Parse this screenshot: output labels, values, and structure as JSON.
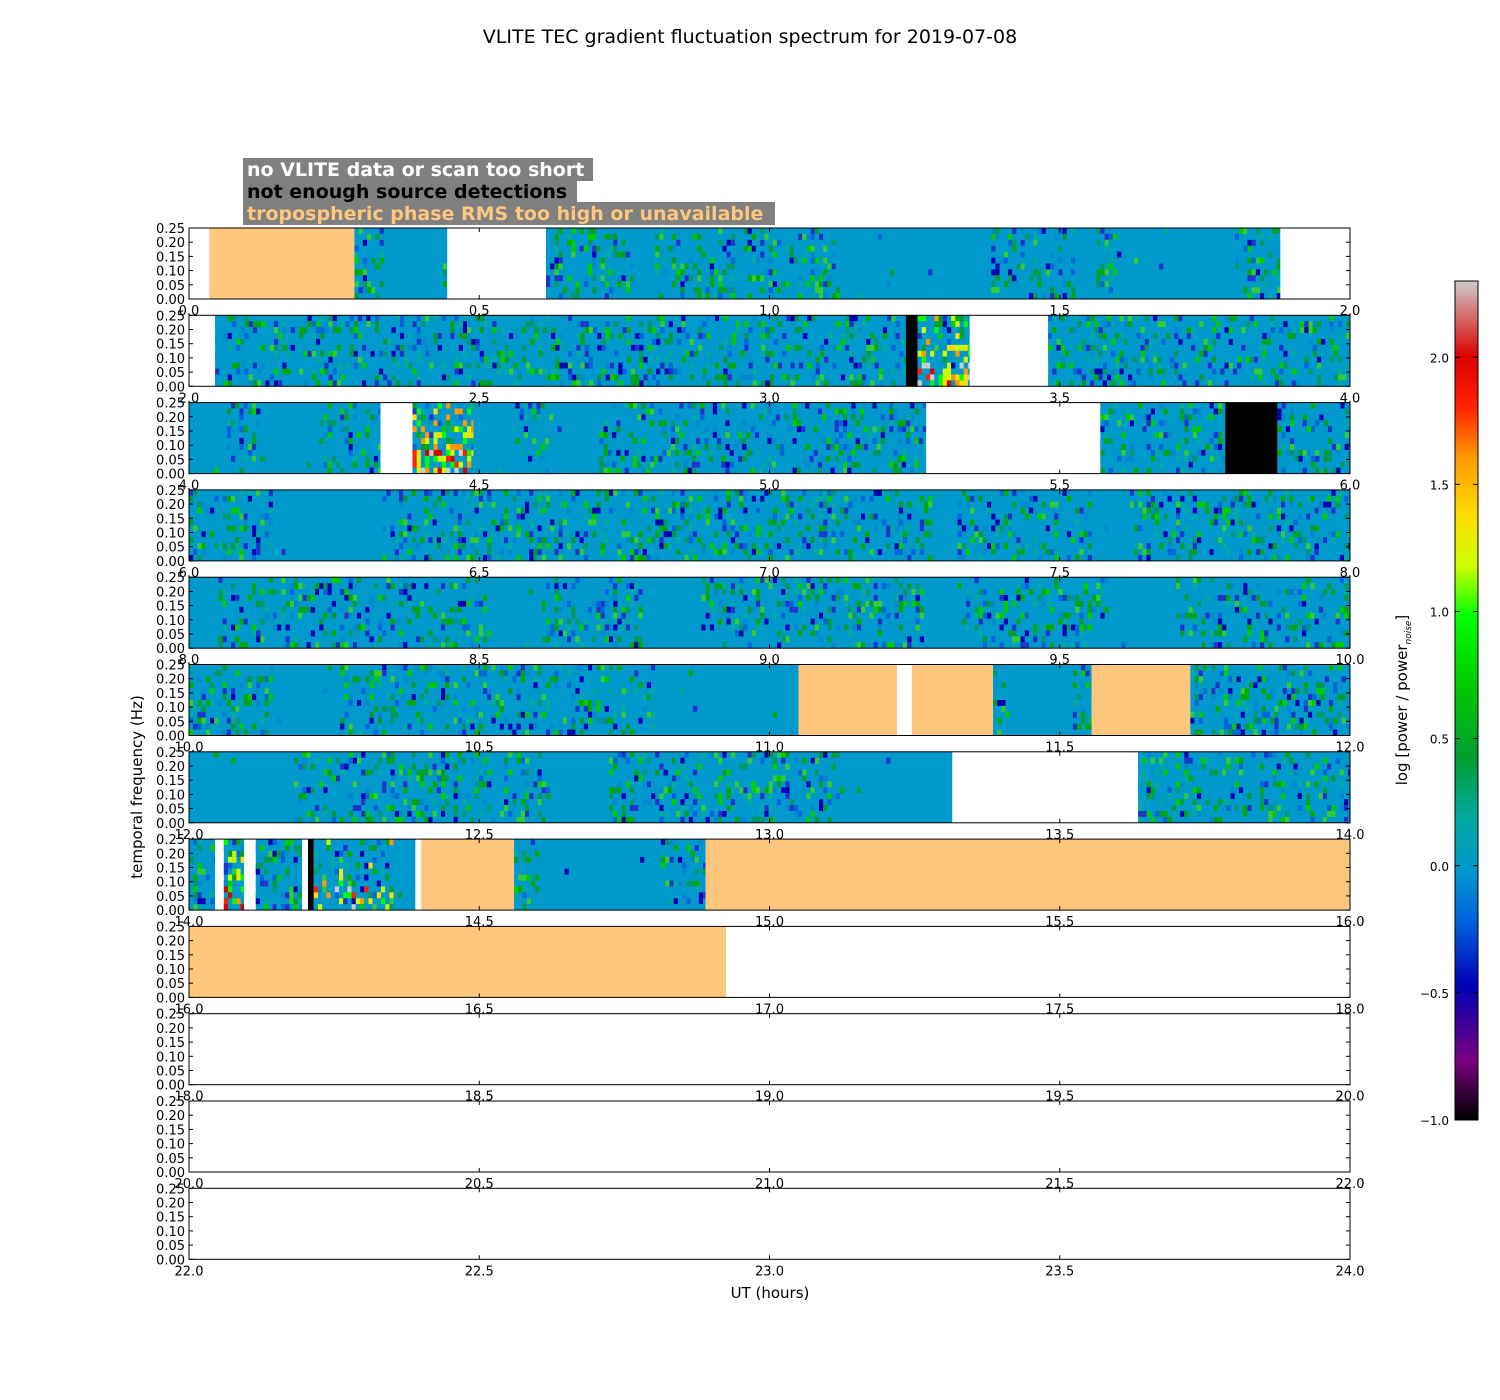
{
  "chart_data": {
    "type": "heatmap",
    "title": "VLITE TEC gradient fluctuation spectrum for 2019-07-08",
    "xlabel": "UT (hours)",
    "ylabel": "temporal frequency (Hz)",
    "ylim": [
      0,
      0.25
    ],
    "y_ticks": [
      "0.00",
      "0.05",
      "0.10",
      "0.15",
      "0.20",
      "0.25"
    ],
    "colorbar": {
      "label": "log [power / power",
      "label_sub": "noise",
      "label_close": "]",
      "range": [
        -1.0,
        2.3
      ],
      "ticks": [
        "−1.0",
        "−0.5",
        "0.0",
        "0.5",
        "1.0",
        "1.5",
        "2.0"
      ],
      "tick_values": [
        -1.0,
        -0.5,
        0.0,
        0.5,
        1.0,
        1.5,
        2.0
      ],
      "colormap": "nipy_spectral"
    },
    "legend": [
      {
        "label": "no VLITE data or scan too short",
        "text_color": "#ffffff"
      },
      {
        "label": "not enough source detections",
        "text_color": "#000000"
      },
      {
        "label": "tropospheric phase RMS too high or unavailable",
        "text_color": "#ffc67e"
      }
    ],
    "legend_box_color": "#808080",
    "flag_colors": {
      "nodata": "#ffffff",
      "nodetect": "#000000",
      "tropo": "#ffc67e"
    },
    "panels": [
      {
        "range": [
          0,
          2
        ],
        "ticks": [
          "0.0",
          "0.5",
          "1.0",
          "1.5",
          "2.0"
        ],
        "flags": [
          {
            "kind": "nodata",
            "from": 0.0,
            "to": 0.035
          },
          {
            "kind": "tropo",
            "from": 0.035,
            "to": 0.285
          },
          {
            "kind": "data",
            "from": 0.285,
            "to": 0.445,
            "quiet": [
              [
                0.33,
                0.43
              ]
            ]
          },
          {
            "kind": "nodata",
            "from": 0.445,
            "to": 0.615
          },
          {
            "kind": "data",
            "from": 0.615,
            "to": 1.88,
            "quiet": [
              [
                0.76,
                0.8
              ],
              [
                0.94,
                0.95
              ],
              [
                1.12,
                1.38
              ],
              [
                1.52,
                1.56
              ],
              [
                1.6,
                1.8
              ]
            ]
          },
          {
            "kind": "nodata",
            "from": 1.88,
            "to": 2.0
          }
        ]
      },
      {
        "range": [
          2,
          4
        ],
        "ticks": [
          "2.0",
          "2.5",
          "3.0",
          "3.5",
          "4.0"
        ],
        "flags": [
          {
            "kind": "nodata",
            "from": 2.0,
            "to": 2.045
          },
          {
            "kind": "data",
            "from": 2.045,
            "to": 3.235
          },
          {
            "kind": "nodetect",
            "from": 3.235,
            "to": 3.255
          },
          {
            "kind": "data",
            "from": 3.255,
            "to": 3.345,
            "hot": 0.6
          },
          {
            "kind": "nodata",
            "from": 3.345,
            "to": 3.48
          },
          {
            "kind": "data",
            "from": 3.48,
            "to": 4.0
          }
        ]
      },
      {
        "range": [
          4,
          6
        ],
        "ticks": [
          "4.0",
          "4.5",
          "5.0",
          "5.5",
          "6.0"
        ],
        "flags": [
          {
            "kind": "data",
            "from": 4.0,
            "to": 4.33,
            "quiet": [
              [
                4.0,
                4.06
              ],
              [
                4.12,
                4.22
              ]
            ]
          },
          {
            "kind": "nodata",
            "from": 4.33,
            "to": 4.385
          },
          {
            "kind": "data",
            "from": 4.385,
            "to": 4.49,
            "hot": 1.0
          },
          {
            "kind": "data",
            "from": 4.49,
            "to": 5.27,
            "quiet": [
              [
                4.49,
                4.55
              ],
              [
                4.62,
                4.7
              ]
            ]
          },
          {
            "kind": "nodata",
            "from": 5.27,
            "to": 5.57
          },
          {
            "kind": "data",
            "from": 5.57,
            "to": 5.785
          },
          {
            "kind": "nodetect",
            "from": 5.785,
            "to": 5.875
          },
          {
            "kind": "data",
            "from": 5.875,
            "to": 6.0
          }
        ]
      },
      {
        "range": [
          6,
          8
        ],
        "ticks": [
          "6.0",
          "6.5",
          "7.0",
          "7.5",
          "8.0"
        ],
        "flags": [
          {
            "kind": "data",
            "from": 6.0,
            "to": 8.0,
            "quiet": [
              [
                6.14,
                6.33
              ],
              [
                7.28,
                7.32
              ],
              [
                7.55,
                7.62
              ]
            ]
          }
        ]
      },
      {
        "range": [
          8,
          10
        ],
        "ticks": [
          "8.0",
          "8.5",
          "9.0",
          "9.5",
          "10.0"
        ],
        "flags": [
          {
            "kind": "data",
            "from": 8.0,
            "to": 10.0,
            "quiet": [
              [
                8.0,
                8.05
              ],
              [
                8.52,
                8.6
              ],
              [
                8.78,
                8.88
              ],
              [
                9.26,
                9.32
              ],
              [
                9.58,
                9.7
              ]
            ]
          }
        ]
      },
      {
        "range": [
          10,
          12
        ],
        "ticks": [
          "10.0",
          "10.5",
          "11.0",
          "11.5",
          "12.0"
        ],
        "flags": [
          {
            "kind": "data",
            "from": 10.0,
            "to": 11.05,
            "quiet": [
              [
                10.14,
                10.26
              ],
              [
                10.8,
                11.05
              ]
            ]
          },
          {
            "kind": "tropo",
            "from": 11.05,
            "to": 11.22
          },
          {
            "kind": "nodata",
            "from": 11.22,
            "to": 11.245
          },
          {
            "kind": "tropo",
            "from": 11.245,
            "to": 11.385
          },
          {
            "kind": "data",
            "from": 11.385,
            "to": 11.555,
            "quiet": [
              [
                11.4,
                11.52
              ]
            ]
          },
          {
            "kind": "tropo",
            "from": 11.555,
            "to": 11.725
          },
          {
            "kind": "data",
            "from": 11.725,
            "to": 12.0
          }
        ]
      },
      {
        "range": [
          12,
          14
        ],
        "ticks": [
          "12.0",
          "12.5",
          "13.0",
          "13.5",
          "14.0"
        ],
        "flags": [
          {
            "kind": "data",
            "from": 12.0,
            "to": 13.315,
            "quiet": [
              [
                12.0,
                12.18
              ],
              [
                12.62,
                12.72
              ],
              [
                13.12,
                13.315
              ]
            ]
          },
          {
            "kind": "nodata",
            "from": 13.315,
            "to": 13.635
          },
          {
            "kind": "data",
            "from": 13.635,
            "to": 14.0
          }
        ]
      },
      {
        "range": [
          14,
          16
        ],
        "ticks": [
          "14.0",
          "14.5",
          "15.0",
          "15.5",
          "16.0"
        ],
        "flags": [
          {
            "kind": "data",
            "from": 14.0,
            "to": 14.045
          },
          {
            "kind": "nodata",
            "from": 14.045,
            "to": 14.06
          },
          {
            "kind": "data",
            "from": 14.06,
            "to": 14.095,
            "hot": 1.0
          },
          {
            "kind": "nodata",
            "from": 14.095,
            "to": 14.115
          },
          {
            "kind": "data",
            "from": 14.115,
            "to": 14.195
          },
          {
            "kind": "nodata",
            "from": 14.195,
            "to": 14.205
          },
          {
            "kind": "nodetect",
            "from": 14.205,
            "to": 14.215
          },
          {
            "kind": "data",
            "from": 14.215,
            "to": 14.39,
            "hot": 0.25,
            "quiet": [
              [
                14.35,
                14.39
              ]
            ]
          },
          {
            "kind": "nodata",
            "from": 14.39,
            "to": 14.4
          },
          {
            "kind": "tropo",
            "from": 14.4,
            "to": 14.56
          },
          {
            "kind": "data",
            "from": 14.56,
            "to": 14.89,
            "quiet": [
              [
                14.6,
                14.81
              ]
            ]
          },
          {
            "kind": "tropo",
            "from": 14.89,
            "to": 16.0
          }
        ]
      },
      {
        "range": [
          16,
          18
        ],
        "ticks": [
          "16.0",
          "16.5",
          "17.0",
          "17.5",
          "18.0"
        ],
        "flags": [
          {
            "kind": "tropo",
            "from": 16.0,
            "to": 16.925
          },
          {
            "kind": "nodata",
            "from": 16.925,
            "to": 18.0
          }
        ]
      },
      {
        "range": [
          18,
          20
        ],
        "ticks": [
          "18.0",
          "18.5",
          "19.0",
          "19.5",
          "20.0"
        ],
        "flags": [
          {
            "kind": "nodata",
            "from": 18.0,
            "to": 20.0
          }
        ]
      },
      {
        "range": [
          20,
          22
        ],
        "ticks": [
          "20.0",
          "20.5",
          "21.0",
          "21.5",
          "22.0"
        ],
        "flags": [
          {
            "kind": "nodata",
            "from": 20.0,
            "to": 22.0
          }
        ]
      },
      {
        "range": [
          22,
          24
        ],
        "ticks": [
          "22.0",
          "22.5",
          "23.0",
          "23.5",
          "24.0"
        ],
        "flags": [
          {
            "kind": "nodata",
            "from": 22.0,
            "to": 24.0
          }
        ]
      }
    ]
  }
}
